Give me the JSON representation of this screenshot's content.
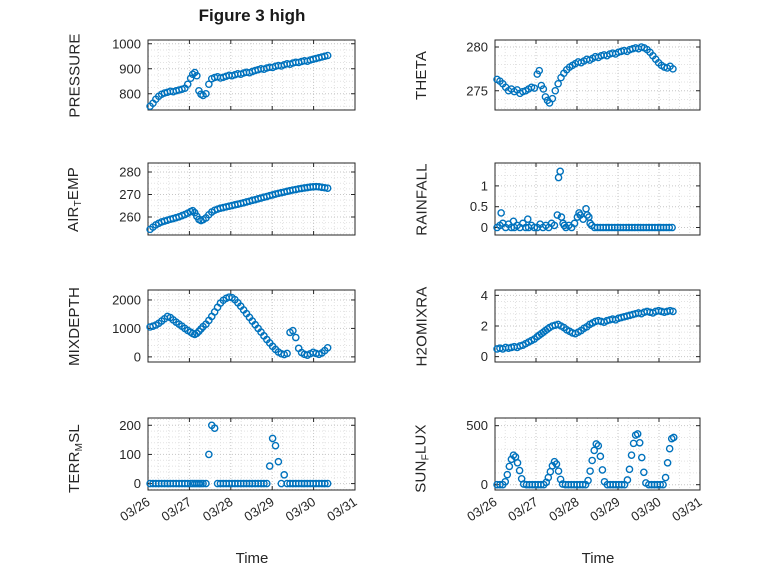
{
  "figure": {
    "title": "Figure 3 high",
    "xlabel": "Time",
    "marker_color": "#0072BD",
    "xtick_labels": [
      "03/26",
      "03/27",
      "03/28",
      "03/29",
      "03/30",
      "03/31"
    ]
  },
  "chart_data": [
    {
      "name": "pressure",
      "type": "scatter",
      "row": 0,
      "col": 0,
      "ylabel": [
        {
          "text": "PRESSURE",
          "sub": false
        }
      ],
      "yticks": [
        800,
        900,
        1000
      ],
      "ylim": [
        735,
        1015
      ],
      "xlim": [
        0,
        5
      ],
      "x": [
        0.05,
        0.12,
        0.19,
        0.26,
        0.33,
        0.4,
        0.47,
        0.54,
        0.61,
        0.68,
        0.75,
        0.82,
        0.89,
        0.96,
        1.03,
        1.08,
        1.13,
        1.18,
        1.23,
        1.28,
        1.33,
        1.4,
        1.47,
        1.54,
        1.61,
        1.68,
        1.75,
        1.82,
        1.89,
        1.96,
        2.03,
        2.1,
        2.17,
        2.24,
        2.31,
        2.38,
        2.45,
        2.52,
        2.59,
        2.66,
        2.73,
        2.8,
        2.87,
        2.94,
        3.01,
        3.08,
        3.15,
        3.22,
        3.29,
        3.36,
        3.43,
        3.5,
        3.57,
        3.64,
        3.71,
        3.78,
        3.85,
        3.92,
        3.99,
        4.06,
        4.13,
        4.2,
        4.27,
        4.34
      ],
      "y": [
        750,
        762,
        778,
        790,
        798,
        803,
        806,
        810,
        808,
        812,
        815,
        818,
        822,
        838,
        862,
        878,
        885,
        872,
        812,
        798,
        793,
        800,
        838,
        860,
        865,
        868,
        863,
        866,
        870,
        874,
        872,
        876,
        880,
        878,
        883,
        886,
        884,
        889,
        893,
        896,
        900,
        898,
        903,
        906,
        905,
        910,
        913,
        911,
        916,
        920,
        918,
        923,
        926,
        925,
        929,
        932,
        930,
        935,
        938,
        941,
        944,
        947,
        950,
        953
      ]
    },
    {
      "name": "theta",
      "type": "scatter",
      "row": 0,
      "col": 1,
      "ylabel": [
        {
          "text": "THETA",
          "sub": false
        }
      ],
      "yticks": [
        275,
        280
      ],
      "ylim": [
        272.8,
        280.8
      ],
      "xlim": [
        0,
        5
      ],
      "x": [
        0.05,
        0.12,
        0.19,
        0.26,
        0.33,
        0.4,
        0.47,
        0.54,
        0.61,
        0.68,
        0.75,
        0.82,
        0.89,
        0.96,
        1.03,
        1.08,
        1.13,
        1.18,
        1.23,
        1.28,
        1.33,
        1.4,
        1.47,
        1.54,
        1.61,
        1.68,
        1.75,
        1.82,
        1.89,
        1.96,
        2.03,
        2.1,
        2.17,
        2.24,
        2.31,
        2.38,
        2.45,
        2.52,
        2.59,
        2.66,
        2.73,
        2.8,
        2.87,
        2.94,
        3.01,
        3.08,
        3.15,
        3.22,
        3.29,
        3.36,
        3.43,
        3.5,
        3.57,
        3.64,
        3.71,
        3.78,
        3.85,
        3.92,
        3.99,
        4.06,
        4.13,
        4.2,
        4.27,
        4.34
      ],
      "y": [
        276.3,
        276.1,
        275.8,
        275.4,
        275.0,
        275.2,
        274.9,
        275.1,
        274.7,
        274.9,
        275.0,
        275.2,
        275.4,
        275.3,
        276.9,
        277.3,
        275.6,
        275.2,
        274.3,
        273.9,
        273.6,
        274.1,
        275.0,
        275.8,
        276.5,
        277.0,
        277.4,
        277.7,
        277.9,
        278.1,
        278.3,
        278.2,
        278.4,
        278.6,
        278.5,
        278.7,
        278.9,
        278.8,
        279.0,
        279.1,
        279.0,
        279.2,
        279.3,
        279.2,
        279.4,
        279.5,
        279.6,
        279.5,
        279.7,
        279.8,
        279.9,
        279.8,
        280.0,
        279.9,
        279.7,
        279.4,
        279.0,
        278.6,
        278.2,
        277.9,
        277.7,
        277.6,
        277.8,
        277.5
      ]
    },
    {
      "name": "air-temp",
      "type": "scatter",
      "row": 1,
      "col": 0,
      "ylabel": [
        {
          "text": "AIR",
          "sub": false
        },
        {
          "text": "T",
          "sub": true
        },
        {
          "text": "EMP",
          "sub": false
        }
      ],
      "yticks": [
        260,
        270,
        280
      ],
      "ylim": [
        252,
        284
      ],
      "xlim": [
        0,
        5
      ],
      "x": [
        0.05,
        0.12,
        0.19,
        0.26,
        0.33,
        0.4,
        0.47,
        0.54,
        0.61,
        0.68,
        0.75,
        0.82,
        0.89,
        0.96,
        1.03,
        1.08,
        1.13,
        1.18,
        1.23,
        1.28,
        1.33,
        1.4,
        1.47,
        1.54,
        1.61,
        1.68,
        1.75,
        1.82,
        1.89,
        1.96,
        2.03,
        2.1,
        2.17,
        2.24,
        2.31,
        2.38,
        2.45,
        2.52,
        2.59,
        2.66,
        2.73,
        2.8,
        2.87,
        2.94,
        3.01,
        3.08,
        3.15,
        3.22,
        3.29,
        3.36,
        3.43,
        3.5,
        3.57,
        3.64,
        3.71,
        3.78,
        3.85,
        3.92,
        3.99,
        4.06,
        4.13,
        4.2,
        4.27,
        4.34
      ],
      "y": [
        254.5,
        255.5,
        256.5,
        257.2,
        257.8,
        258.2,
        258.6,
        259.0,
        259.3,
        259.7,
        260.1,
        260.6,
        261.1,
        261.7,
        262.4,
        262.8,
        261.9,
        260.3,
        258.9,
        258.4,
        258.8,
        259.6,
        261.0,
        262.2,
        263.0,
        263.5,
        263.9,
        264.2,
        264.5,
        264.8,
        265.1,
        265.4,
        265.7,
        266.0,
        266.3,
        266.7,
        267.0,
        267.4,
        267.7,
        268.1,
        268.4,
        268.8,
        269.1,
        269.5,
        269.8,
        270.2,
        270.5,
        270.8,
        271.1,
        271.4,
        271.7,
        272.0,
        272.2,
        272.5,
        272.7,
        272.9,
        273.1,
        273.3,
        273.4,
        273.5,
        273.4,
        273.2,
        273.0,
        272.8
      ]
    },
    {
      "name": "rainfall",
      "type": "scatter",
      "row": 1,
      "col": 1,
      "ylabel": [
        {
          "text": "RAINFALL",
          "sub": false
        }
      ],
      "yticks": [
        0,
        0.5,
        1
      ],
      "ylim": [
        -0.18,
        1.55
      ],
      "xlim": [
        0,
        5
      ],
      "x": [
        0.05,
        0.12,
        0.15,
        0.19,
        0.26,
        0.33,
        0.4,
        0.45,
        0.47,
        0.54,
        0.61,
        0.68,
        0.75,
        0.8,
        0.82,
        0.89,
        0.96,
        1.03,
        1.1,
        1.17,
        1.24,
        1.31,
        1.38,
        1.45,
        1.52,
        1.55,
        1.59,
        1.62,
        1.66,
        1.69,
        1.73,
        1.8,
        1.87,
        1.94,
        2.01,
        2.05,
        2.08,
        2.15,
        2.22,
        2.25,
        2.29,
        2.32,
        2.36,
        2.43,
        2.5,
        2.57,
        2.64,
        2.71,
        2.78,
        2.85,
        2.92,
        2.99,
        3.06,
        3.13,
        3.2,
        3.27,
        3.34,
        3.41,
        3.48,
        3.55,
        3.62,
        3.69,
        3.76,
        3.83,
        3.9,
        3.97,
        4.04,
        4.11,
        4.18,
        4.25,
        4.32
      ],
      "y": [
        0,
        0.05,
        0.35,
        0.1,
        0,
        0.08,
        0,
        0.15,
        0,
        0.05,
        0,
        0.1,
        0,
        0.2,
        0,
        0.05,
        0,
        0,
        0.08,
        0,
        0.05,
        0,
        0.1,
        0.05,
        0.3,
        1.2,
        1.35,
        0.25,
        0.1,
        0.05,
        0,
        0.05,
        0,
        0.1,
        0.25,
        0.35,
        0.3,
        0.2,
        0.45,
        0.3,
        0.25,
        0.1,
        0.05,
        0,
        0,
        0,
        0,
        0,
        0,
        0,
        0,
        0,
        0,
        0,
        0,
        0,
        0,
        0,
        0,
        0,
        0,
        0,
        0,
        0,
        0,
        0,
        0,
        0,
        0,
        0,
        0
      ]
    },
    {
      "name": "mixdepth",
      "type": "scatter",
      "row": 2,
      "col": 0,
      "ylabel": [
        {
          "text": "MIXDEPTH",
          "sub": false
        }
      ],
      "yticks": [
        0,
        1000,
        2000
      ],
      "ylim": [
        -180,
        2350
      ],
      "xlim": [
        0,
        5
      ],
      "x": [
        0.05,
        0.12,
        0.19,
        0.26,
        0.33,
        0.4,
        0.47,
        0.54,
        0.61,
        0.68,
        0.75,
        0.82,
        0.89,
        0.96,
        1.03,
        1.08,
        1.13,
        1.18,
        1.23,
        1.28,
        1.33,
        1.4,
        1.47,
        1.54,
        1.61,
        1.68,
        1.75,
        1.82,
        1.89,
        1.96,
        2.03,
        2.1,
        2.17,
        2.24,
        2.31,
        2.38,
        2.45,
        2.52,
        2.59,
        2.66,
        2.73,
        2.8,
        2.87,
        2.94,
        3.01,
        3.08,
        3.15,
        3.22,
        3.29,
        3.36,
        3.43,
        3.5,
        3.57,
        3.64,
        3.71,
        3.78,
        3.85,
        3.92,
        3.99,
        4.06,
        4.13,
        4.2,
        4.27,
        4.34
      ],
      "y": [
        1050,
        1080,
        1120,
        1180,
        1260,
        1340,
        1420,
        1380,
        1300,
        1220,
        1150,
        1080,
        1000,
        930,
        870,
        820,
        790,
        830,
        900,
        980,
        1060,
        1150,
        1280,
        1420,
        1580,
        1740,
        1890,
        1990,
        2060,
        2100,
        2080,
        2010,
        1900,
        1780,
        1650,
        1520,
        1390,
        1260,
        1130,
        1000,
        870,
        740,
        610,
        490,
        370,
        260,
        170,
        110,
        80,
        120,
        860,
        920,
        680,
        300,
        150,
        90,
        60,
        110,
        160,
        120,
        90,
        140,
        220,
        320
      ]
    },
    {
      "name": "h2omixra",
      "type": "scatter",
      "row": 2,
      "col": 1,
      "ylabel": [
        {
          "text": "H2OMIXRA",
          "sub": false
        }
      ],
      "yticks": [
        0,
        2,
        4
      ],
      "ylim": [
        -0.35,
        4.35
      ],
      "xlim": [
        0,
        5
      ],
      "x": [
        0.05,
        0.12,
        0.19,
        0.26,
        0.33,
        0.4,
        0.47,
        0.54,
        0.61,
        0.68,
        0.75,
        0.82,
        0.89,
        0.96,
        1.03,
        1.08,
        1.13,
        1.18,
        1.23,
        1.28,
        1.33,
        1.4,
        1.47,
        1.54,
        1.61,
        1.68,
        1.75,
        1.82,
        1.89,
        1.96,
        2.03,
        2.1,
        2.17,
        2.24,
        2.31,
        2.38,
        2.45,
        2.52,
        2.59,
        2.66,
        2.73,
        2.8,
        2.87,
        2.94,
        3.01,
        3.08,
        3.15,
        3.22,
        3.29,
        3.36,
        3.43,
        3.5,
        3.57,
        3.64,
        3.71,
        3.78,
        3.85,
        3.92,
        3.99,
        4.06,
        4.13,
        4.2,
        4.27,
        4.34
      ],
      "y": [
        0.5,
        0.55,
        0.5,
        0.6,
        0.55,
        0.6,
        0.65,
        0.6,
        0.7,
        0.75,
        0.85,
        0.95,
        1.05,
        1.15,
        1.3,
        1.4,
        1.5,
        1.6,
        1.7,
        1.8,
        1.9,
        2.0,
        2.05,
        2.1,
        2.0,
        1.9,
        1.75,
        1.65,
        1.55,
        1.5,
        1.6,
        1.7,
        1.85,
        1.95,
        2.1,
        2.2,
        2.3,
        2.35,
        2.3,
        2.25,
        2.35,
        2.4,
        2.45,
        2.4,
        2.5,
        2.55,
        2.6,
        2.65,
        2.7,
        2.75,
        2.8,
        2.85,
        2.8,
        2.9,
        2.95,
        2.9,
        2.85,
        2.95,
        3.0,
        2.95,
        2.9,
        2.95,
        3.0,
        2.95
      ]
    },
    {
      "name": "terr-msl",
      "type": "scatter",
      "row": 3,
      "col": 0,
      "ylabel": [
        {
          "text": "TERR",
          "sub": false
        },
        {
          "text": "M",
          "sub": true
        },
        {
          "text": "SL",
          "sub": false
        }
      ],
      "yticks": [
        0,
        100,
        200
      ],
      "ylim": [
        -22,
        225
      ],
      "xlim": [
        0,
        5
      ],
      "x": [
        0.05,
        0.12,
        0.19,
        0.26,
        0.33,
        0.4,
        0.47,
        0.54,
        0.61,
        0.68,
        0.75,
        0.82,
        0.89,
        0.96,
        1.03,
        1.08,
        1.13,
        1.18,
        1.23,
        1.28,
        1.33,
        1.4,
        1.47,
        1.54,
        1.61,
        1.68,
        1.75,
        1.82,
        1.89,
        1.96,
        2.03,
        2.1,
        2.17,
        2.24,
        2.31,
        2.38,
        2.45,
        2.52,
        2.59,
        2.66,
        2.73,
        2.8,
        2.87,
        2.94,
        3.01,
        3.08,
        3.15,
        3.22,
        3.29,
        3.36,
        3.43,
        3.5,
        3.57,
        3.64,
        3.71,
        3.78,
        3.85,
        3.92,
        3.99,
        4.06,
        4.13,
        4.2,
        4.27,
        4.34
      ],
      "y": [
        0,
        0,
        0,
        0,
        0,
        0,
        0,
        0,
        0,
        0,
        0,
        0,
        0,
        0,
        0,
        0,
        0,
        0,
        0,
        0,
        0,
        0,
        100,
        200,
        190,
        0,
        0,
        0,
        0,
        0,
        0,
        0,
        0,
        0,
        0,
        0,
        0,
        0,
        0,
        0,
        0,
        0,
        0,
        60,
        155,
        130,
        75,
        0,
        30,
        0,
        0,
        0,
        0,
        0,
        0,
        0,
        0,
        0,
        0,
        0,
        0,
        0,
        0,
        0
      ]
    },
    {
      "name": "sun-flux",
      "type": "scatter",
      "row": 3,
      "col": 1,
      "ylabel": [
        {
          "text": "SUN",
          "sub": false
        },
        {
          "text": "F",
          "sub": true
        },
        {
          "text": "LUX",
          "sub": false
        }
      ],
      "yticks": [
        0,
        500
      ],
      "ylim": [
        -45,
        565
      ],
      "xlim": [
        0,
        5
      ],
      "x": [
        0.05,
        0.12,
        0.19,
        0.25,
        0.3,
        0.35,
        0.4,
        0.45,
        0.5,
        0.55,
        0.6,
        0.65,
        0.7,
        0.77,
        0.84,
        0.91,
        0.98,
        1.05,
        1.12,
        1.19,
        1.25,
        1.3,
        1.35,
        1.4,
        1.45,
        1.5,
        1.55,
        1.6,
        1.65,
        1.72,
        1.79,
        1.86,
        1.93,
        2.0,
        2.07,
        2.14,
        2.21,
        2.27,
        2.32,
        2.37,
        2.42,
        2.47,
        2.52,
        2.57,
        2.62,
        2.67,
        2.74,
        2.81,
        2.88,
        2.95,
        3.02,
        3.09,
        3.16,
        3.23,
        3.28,
        3.33,
        3.38,
        3.43,
        3.48,
        3.53,
        3.58,
        3.63,
        3.68,
        3.75,
        3.82,
        3.89,
        3.96,
        4.03,
        4.1,
        4.16,
        4.21,
        4.26,
        4.31,
        4.36
      ],
      "y": [
        0,
        0,
        0,
        25,
        85,
        155,
        215,
        250,
        235,
        185,
        120,
        50,
        5,
        0,
        0,
        0,
        0,
        0,
        0,
        0,
        20,
        60,
        110,
        160,
        195,
        175,
        115,
        45,
        5,
        0,
        0,
        0,
        0,
        0,
        0,
        0,
        0,
        35,
        115,
        205,
        290,
        345,
        330,
        240,
        125,
        25,
        0,
        0,
        0,
        0,
        0,
        0,
        0,
        40,
        130,
        250,
        350,
        420,
        430,
        355,
        230,
        105,
        15,
        0,
        0,
        0,
        0,
        0,
        0,
        60,
        185,
        305,
        390,
        400
      ]
    }
  ]
}
